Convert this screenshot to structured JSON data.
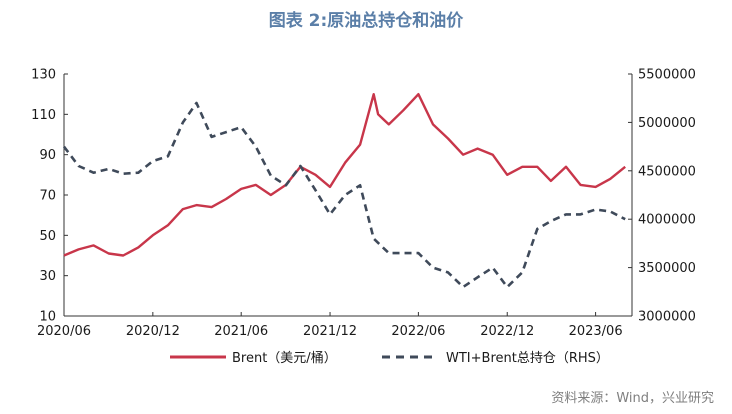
{
  "chart_data": {
    "type": "line",
    "title": "图表 2:原油总持仓和油价",
    "source": "资料来源：Wind，兴业研究",
    "x_ticks": [
      "2020/06",
      "2020/12",
      "2021/06",
      "2021/12",
      "2022/06",
      "2022/12",
      "2023/06"
    ],
    "y_left_ticks": [
      "130",
      "110",
      "90",
      "70",
      "50",
      "30",
      "10"
    ],
    "y_right_ticks": [
      "5500000",
      "5000000",
      "4500000",
      "4000000",
      "3500000",
      "3000000"
    ],
    "y_left_range": [
      10,
      130
    ],
    "y_right_range": [
      3000000,
      5500000
    ],
    "x_range": [
      "2020-06-01",
      "2023-08-15"
    ],
    "series": [
      {
        "name": "Brent（美元/桶）",
        "axis": "left",
        "color": "#c8364a",
        "style": "solid",
        "points": [
          [
            "2020-06-01",
            40
          ],
          [
            "2020-07-01",
            43
          ],
          [
            "2020-08-01",
            45
          ],
          [
            "2020-09-01",
            41
          ],
          [
            "2020-10-01",
            40
          ],
          [
            "2020-11-01",
            44
          ],
          [
            "2020-12-01",
            50
          ],
          [
            "2021-01-01",
            55
          ],
          [
            "2021-02-01",
            63
          ],
          [
            "2021-03-01",
            65
          ],
          [
            "2021-04-01",
            64
          ],
          [
            "2021-05-01",
            68
          ],
          [
            "2021-06-01",
            73
          ],
          [
            "2021-07-01",
            75
          ],
          [
            "2021-08-01",
            70
          ],
          [
            "2021-09-01",
            75
          ],
          [
            "2021-10-01",
            84
          ],
          [
            "2021-11-01",
            80
          ],
          [
            "2021-12-01",
            74
          ],
          [
            "2022-01-01",
            86
          ],
          [
            "2022-02-01",
            95
          ],
          [
            "2022-03-01",
            120
          ],
          [
            "2022-03-10",
            110
          ],
          [
            "2022-04-01",
            105
          ],
          [
            "2022-05-01",
            112
          ],
          [
            "2022-06-01",
            120
          ],
          [
            "2022-07-01",
            105
          ],
          [
            "2022-08-01",
            98
          ],
          [
            "2022-09-01",
            90
          ],
          [
            "2022-10-01",
            93
          ],
          [
            "2022-11-01",
            90
          ],
          [
            "2022-12-01",
            80
          ],
          [
            "2023-01-01",
            84
          ],
          [
            "2023-02-01",
            84
          ],
          [
            "2023-03-01",
            77
          ],
          [
            "2023-04-01",
            84
          ],
          [
            "2023-05-01",
            75
          ],
          [
            "2023-06-01",
            74
          ],
          [
            "2023-07-01",
            78
          ],
          [
            "2023-08-01",
            84
          ]
        ]
      },
      {
        "name": "WTI+Brent总持仓（RHS）",
        "axis": "right",
        "color": "#3f4a5a",
        "style": "dashed",
        "points": [
          [
            "2020-06-01",
            4750000
          ],
          [
            "2020-07-01",
            4550000
          ],
          [
            "2020-08-01",
            4480000
          ],
          [
            "2020-09-01",
            4520000
          ],
          [
            "2020-10-01",
            4470000
          ],
          [
            "2020-11-01",
            4480000
          ],
          [
            "2020-12-01",
            4600000
          ],
          [
            "2021-01-01",
            4650000
          ],
          [
            "2021-02-01",
            5000000
          ],
          [
            "2021-03-01",
            5200000
          ],
          [
            "2021-04-01",
            4850000
          ],
          [
            "2021-05-01",
            4900000
          ],
          [
            "2021-06-01",
            4950000
          ],
          [
            "2021-07-01",
            4750000
          ],
          [
            "2021-08-01",
            4450000
          ],
          [
            "2021-09-01",
            4350000
          ],
          [
            "2021-10-01",
            4550000
          ],
          [
            "2021-11-01",
            4300000
          ],
          [
            "2021-12-01",
            4050000
          ],
          [
            "2022-01-01",
            4250000
          ],
          [
            "2022-02-01",
            4350000
          ],
          [
            "2022-03-01",
            3800000
          ],
          [
            "2022-04-01",
            3650000
          ],
          [
            "2022-05-01",
            3650000
          ],
          [
            "2022-06-01",
            3650000
          ],
          [
            "2022-07-01",
            3500000
          ],
          [
            "2022-08-01",
            3450000
          ],
          [
            "2022-09-01",
            3300000
          ],
          [
            "2022-10-01",
            3400000
          ],
          [
            "2022-11-01",
            3500000
          ],
          [
            "2022-12-01",
            3300000
          ],
          [
            "2023-01-01",
            3450000
          ],
          [
            "2023-02-01",
            3900000
          ],
          [
            "2023-03-01",
            3980000
          ],
          [
            "2023-04-01",
            4050000
          ],
          [
            "2023-05-01",
            4050000
          ],
          [
            "2023-06-01",
            4100000
          ],
          [
            "2023-07-01",
            4080000
          ],
          [
            "2023-08-01",
            4000000
          ]
        ]
      }
    ],
    "legend_position": "bottom",
    "grid": false
  }
}
